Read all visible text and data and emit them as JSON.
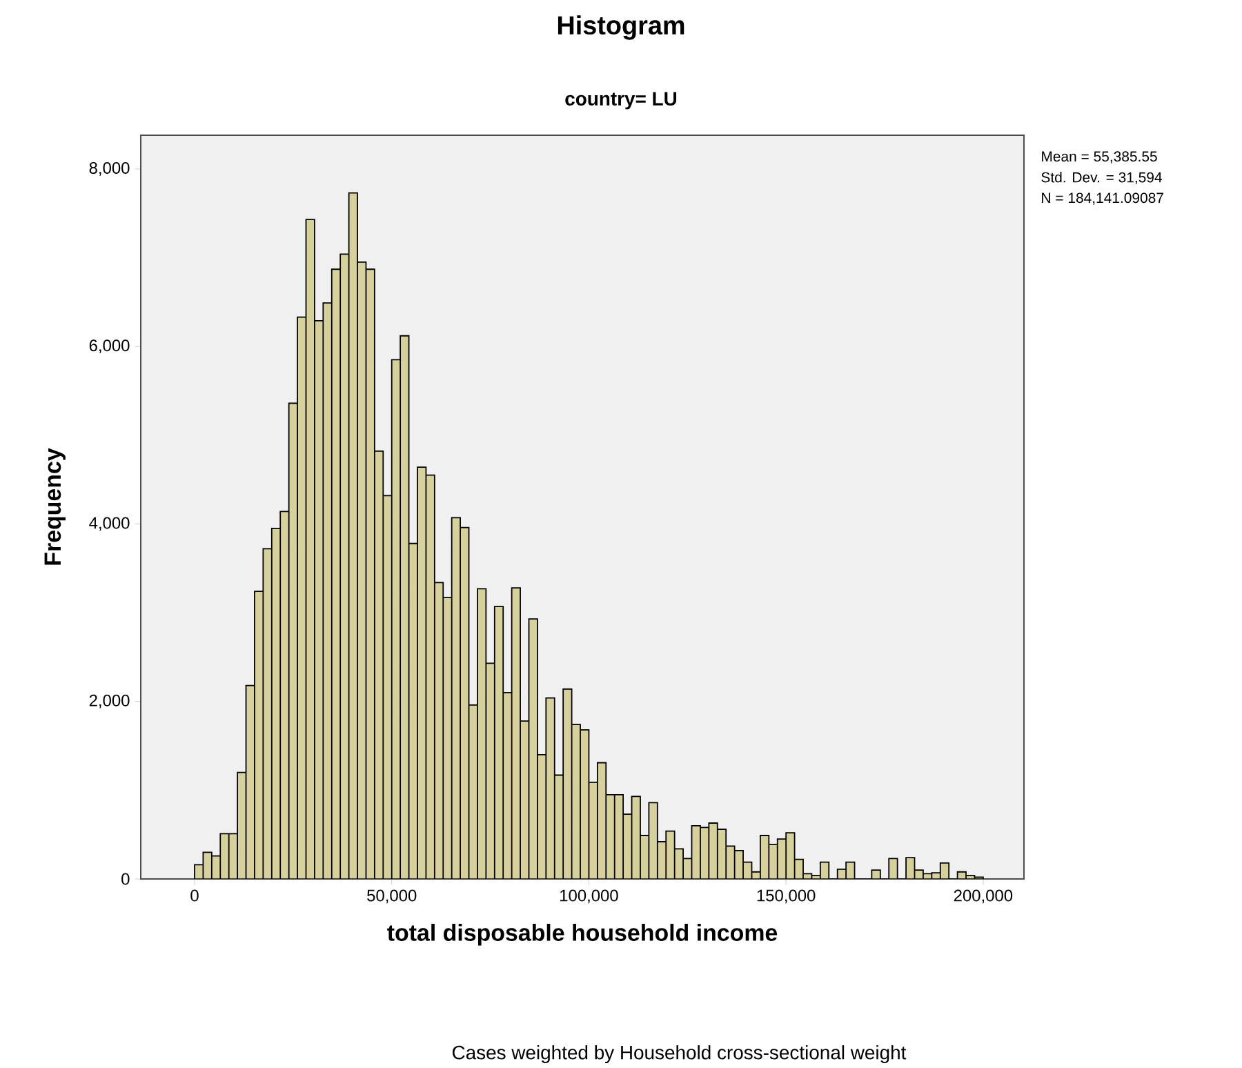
{
  "chart_data": {
    "type": "histogram",
    "title": "Histogram",
    "subtitle": "country= LU",
    "xlabel": "total disposable household income",
    "ylabel": "Frequency",
    "annotations": [
      "Mean = 55,385.55",
      "Std. Dev. = 31,594",
      "N = 184,141.09087",
      "Cases weighted by Household cross-sectional weight"
    ],
    "bins": [
      0,
      2174,
      4348,
      6522,
      8696,
      10870,
      13043,
      15217,
      17391,
      19565,
      21739,
      23913,
      26087,
      28261,
      30435,
      32609,
      34783,
      36957,
      39130,
      41304,
      43478,
      45652,
      47826,
      50000,
      52174,
      54348,
      56522,
      58696,
      60870,
      63043,
      65217,
      67391,
      69565,
      71739,
      73913,
      76087,
      78261,
      80435,
      82609,
      84783,
      86957,
      89130,
      91304,
      93478,
      95652,
      97826,
      100000,
      102174,
      104348,
      106522,
      108696,
      110870,
      113043,
      115217,
      117391,
      119565,
      121739,
      123913,
      126087,
      128261,
      130435,
      132609,
      134783,
      136957,
      139130,
      141304,
      143478,
      145652,
      147826,
      150000,
      152174,
      154348,
      156522,
      158696,
      160870,
      163043,
      165217,
      167391,
      169565,
      171739,
      173913,
      176087,
      178261,
      180435,
      182609,
      184783,
      186957,
      189130,
      191304,
      193478,
      195652,
      197826,
      200000
    ],
    "values": [
      160,
      300,
      260,
      510,
      510,
      1200,
      2180,
      3240,
      3720,
      3950,
      4140,
      5360,
      6330,
      7430,
      6290,
      6490,
      6870,
      7040,
      7730,
      6950,
      6870,
      4820,
      4320,
      5850,
      6120,
      3780,
      4640,
      4550,
      3340,
      3170,
      4070,
      3960,
      1960,
      3270,
      2430,
      3070,
      2100,
      3280,
      1780,
      2930,
      1400,
      2040,
      1170,
      2140,
      1740,
      1680,
      1090,
      1310,
      950,
      950,
      730,
      930,
      490,
      860,
      420,
      540,
      340,
      230,
      600,
      580,
      630,
      560,
      370,
      320,
      190,
      80,
      490,
      390,
      450,
      520,
      220,
      60,
      40,
      190,
      null,
      110,
      190,
      0,
      0,
      100,
      0,
      230,
      null,
      240,
      100,
      60,
      70,
      180,
      0,
      80,
      40,
      20
    ],
    "color": "#d6d09a",
    "xlim": [
      -13650,
      210350
    ],
    "ylim": [
      0,
      8380
    ],
    "xticks": [
      0,
      {
        "value": 50000,
        "label": "50,000"
      },
      {
        "value": 100000,
        "label": "100,000"
      },
      {
        "value": 150000,
        "label": "150,000"
      },
      {
        "value": 200000,
        "label": "200,000"
      }
    ],
    "yticks": [
      0,
      {
        "value": 2000,
        "label": "2,000"
      },
      {
        "value": 4000,
        "label": "4,000"
      },
      {
        "value": 6000,
        "label": "6,000"
      },
      {
        "value": 8000,
        "label": "8,000"
      }
    ],
    "line_style": "solid"
  }
}
